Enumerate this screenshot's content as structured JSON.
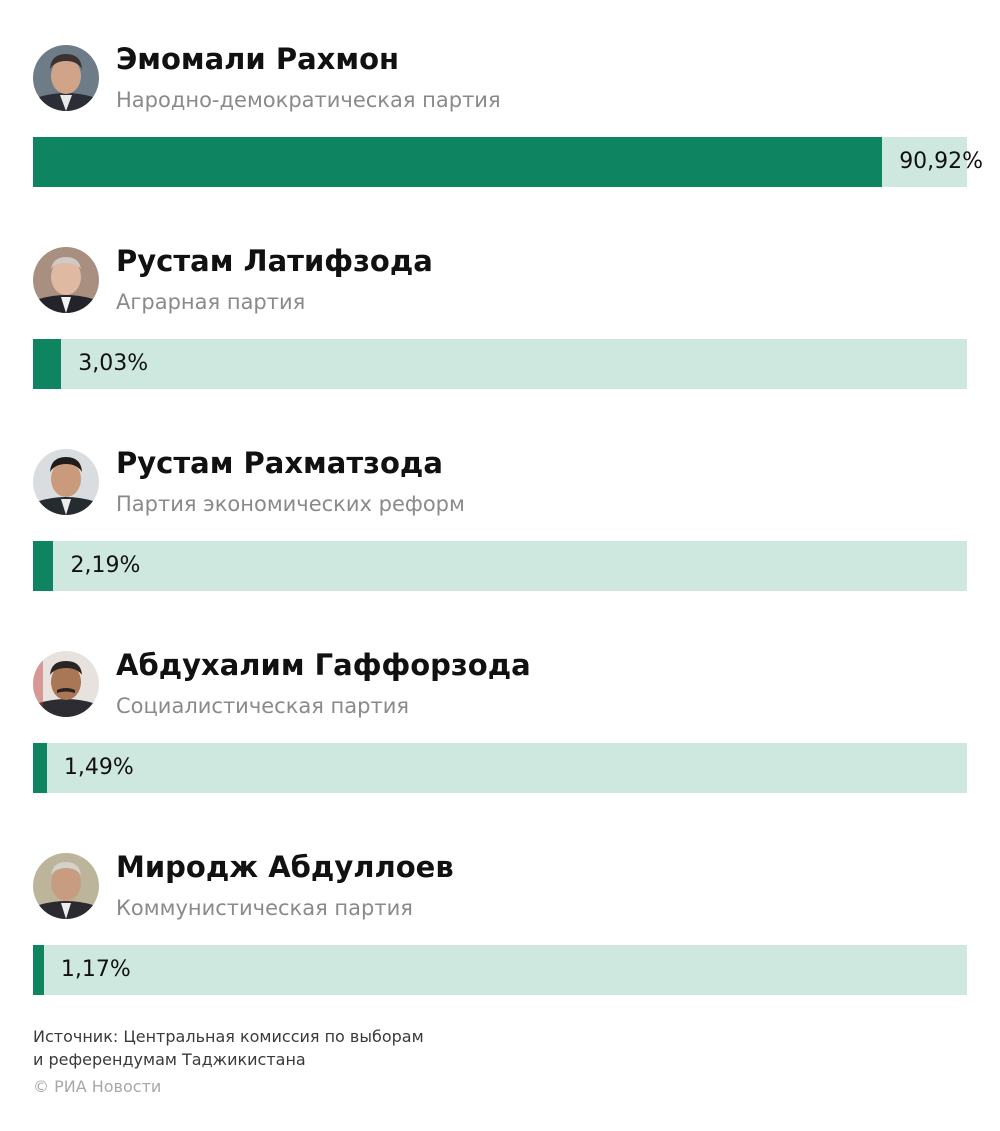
{
  "chart_data": {
    "type": "bar",
    "orientation": "horizontal",
    "categories": [
      "Эмомали Рахмон",
      "Рустам Латифзода",
      "Рустам Рахматзода",
      "Абдухалим Гаффорзода",
      "Миродж Абдуллоев"
    ],
    "subtitles": [
      "Народно-демократическая партия",
      "Аграрная партия",
      "Партия экономических реформ",
      "Социалистическая партия",
      "Коммунистическая партия"
    ],
    "values": [
      90.92,
      3.03,
      2.19,
      1.49,
      1.17
    ],
    "value_labels": [
      "90,92%",
      "3,03%",
      "2,19%",
      "1,49%",
      "1,17%"
    ],
    "xlim": [
      0,
      100
    ],
    "colors": {
      "bar": "#0e8460",
      "track": "#cfe8df"
    }
  },
  "footer": {
    "source_line1": "Источник: Центральная комиссия по выборам",
    "source_line2": "и референдумам Таджикистана",
    "copyright": "© РИА Новости"
  }
}
